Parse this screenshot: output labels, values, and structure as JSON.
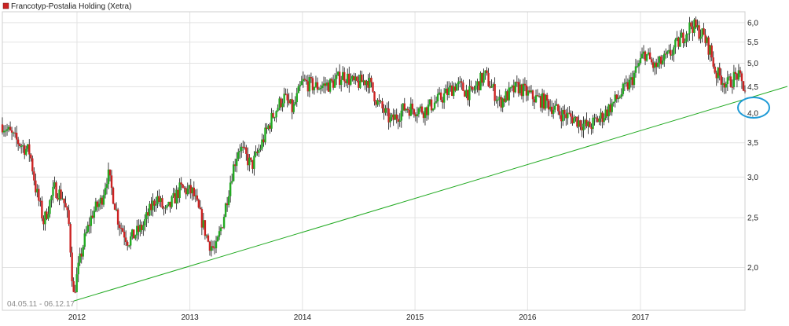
{
  "chart_data": {
    "type": "candlestick",
    "legend": {
      "label": "Francotyp-Postalia Holding (Xetra)",
      "placement": "top-left",
      "color": "#cc2222"
    },
    "date_range_label": "04.05.11 - 06.12.17",
    "x_ticks": [
      "2012",
      "2013",
      "2014",
      "2015",
      "2016",
      "2017"
    ],
    "y_ticks": [
      "2,0",
      "2,5",
      "3,0",
      "3,5",
      "4,0",
      "4,5",
      "5,0",
      "5,5",
      "6,0"
    ],
    "y_scale": "log",
    "ylim": [
      1.65,
      6.3
    ],
    "xlim": [
      "2011-05-04",
      "2017-12-06"
    ],
    "grid": true,
    "colors": {
      "up": "#22aa22",
      "down": "#cc2222",
      "wick": "#111111",
      "trendline": "#22aa22",
      "highlight": "#1e9ad6"
    },
    "series_anchors": [
      [
        "2011-05-04",
        3.8
      ],
      [
        "2011-06-15",
        3.55
      ],
      [
        "2011-08-01",
        3.35
      ],
      [
        "2011-08-20",
        2.85
      ],
      [
        "2011-09-15",
        2.45
      ],
      [
        "2011-10-20",
        2.85
      ],
      [
        "2011-11-15",
        2.75
      ],
      [
        "2011-12-05",
        2.45
      ],
      [
        "2011-12-20",
        1.75
      ],
      [
        "2012-01-20",
        2.2
      ],
      [
        "2012-02-20",
        2.55
      ],
      [
        "2012-03-20",
        2.7
      ],
      [
        "2012-04-10",
        3.05
      ],
      [
        "2012-05-15",
        2.45
      ],
      [
        "2012-06-15",
        2.25
      ],
      [
        "2012-08-01",
        2.4
      ],
      [
        "2012-09-15",
        2.75
      ],
      [
        "2012-10-15",
        2.55
      ],
      [
        "2012-12-01",
        2.85
      ],
      [
        "2013-01-10",
        2.8
      ],
      [
        "2013-02-01",
        2.55
      ],
      [
        "2013-03-01",
        2.25
      ],
      [
        "2013-03-25",
        2.15
      ],
      [
        "2013-04-20",
        2.5
      ],
      [
        "2013-05-20",
        3.1
      ],
      [
        "2013-06-10",
        3.45
      ],
      [
        "2013-07-20",
        3.15
      ],
      [
        "2013-08-15",
        3.4
      ],
      [
        "2013-10-01",
        4.0
      ],
      [
        "2013-11-01",
        4.3
      ],
      [
        "2013-12-01",
        4.05
      ],
      [
        "2014-01-01",
        4.6
      ],
      [
        "2014-02-15",
        4.5
      ],
      [
        "2014-04-01",
        4.55
      ],
      [
        "2014-05-15",
        4.75
      ],
      [
        "2014-06-20",
        4.55
      ],
      [
        "2014-08-01",
        4.65
      ],
      [
        "2014-09-01",
        4.2
      ],
      [
        "2014-10-15",
        3.85
      ],
      [
        "2014-12-01",
        4.1
      ],
      [
        "2015-02-01",
        4.05
      ],
      [
        "2015-04-01",
        4.3
      ],
      [
        "2015-05-15",
        4.55
      ],
      [
        "2015-07-01",
        4.35
      ],
      [
        "2015-08-15",
        4.75
      ],
      [
        "2015-10-01",
        4.2
      ],
      [
        "2015-12-01",
        4.5
      ],
      [
        "2016-01-15",
        4.3
      ],
      [
        "2016-03-01",
        4.2
      ],
      [
        "2016-04-15",
        4.0
      ],
      [
        "2016-06-01",
        3.9
      ],
      [
        "2016-07-15",
        3.75
      ],
      [
        "2016-09-01",
        3.95
      ],
      [
        "2016-10-15",
        4.25
      ],
      [
        "2016-12-01",
        4.6
      ],
      [
        "2017-01-15",
        5.25
      ],
      [
        "2017-02-15",
        4.9
      ],
      [
        "2017-04-01",
        5.15
      ],
      [
        "2017-05-15",
        5.6
      ],
      [
        "2017-06-15",
        5.95
      ],
      [
        "2017-07-20",
        5.7
      ],
      [
        "2017-08-15",
        5.3
      ],
      [
        "2017-09-01",
        4.8
      ],
      [
        "2017-10-10",
        4.55
      ],
      [
        "2017-11-10",
        4.75
      ],
      [
        "2017-12-06",
        4.45
      ]
    ],
    "trendline": [
      [
        "2011-12-21",
        1.72
      ],
      [
        "2017-12-31",
        4.3
      ]
    ]
  }
}
